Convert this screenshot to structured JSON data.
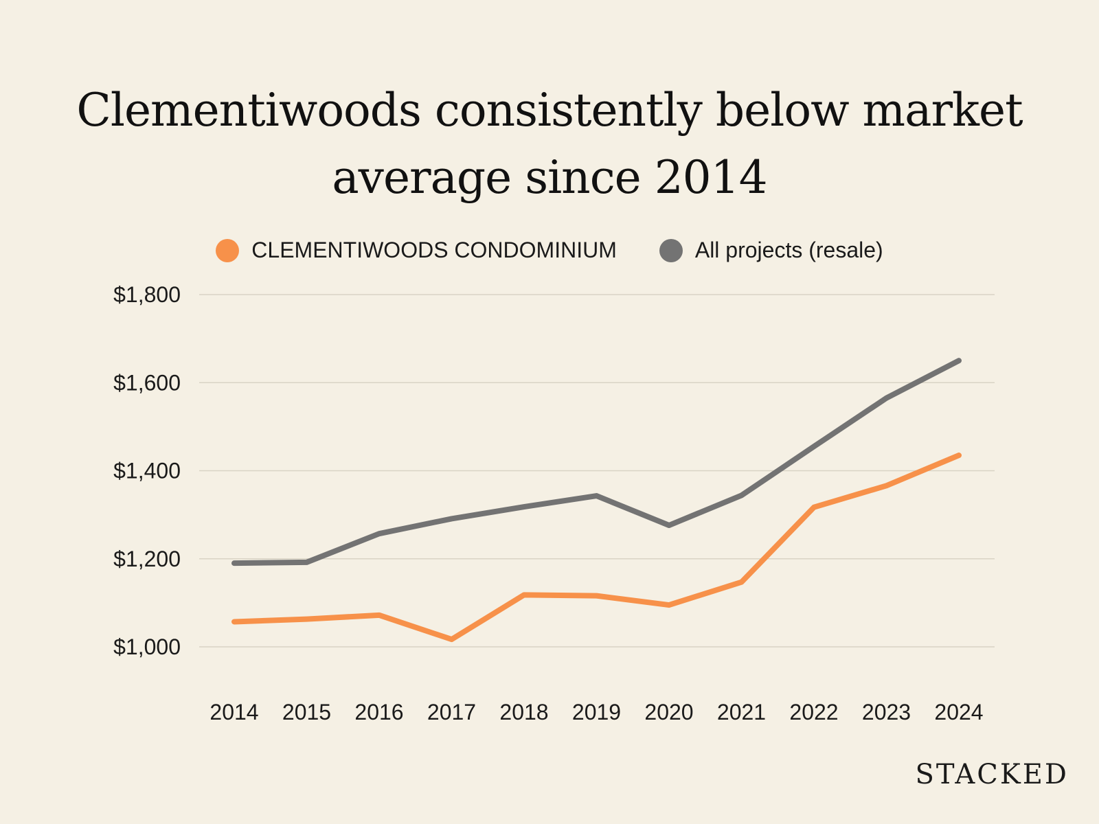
{
  "title": {
    "line1": "Clementiwoods consistently below market",
    "line2": "average since 2014"
  },
  "brand": "STACKED",
  "colors": {
    "background": "#f5f0e4",
    "grid": "#d9d3c5",
    "clementiwoods": "#f7914a",
    "all_projects": "#737373"
  },
  "chart_data": {
    "type": "line",
    "title": "Clementiwoods consistently below market average since 2014",
    "xlabel": "",
    "ylabel": "",
    "ylim": [
      1000,
      1800
    ],
    "yticks": [
      1000,
      1200,
      1400,
      1600,
      1800
    ],
    "ytick_labels": [
      "$1,000",
      "$1,200",
      "$1,400",
      "$1,600",
      "$1,800"
    ],
    "grid": true,
    "legend_position": "top-center",
    "categories": [
      "2014",
      "2015",
      "2016",
      "2017",
      "2018",
      "2019",
      "2020",
      "2021",
      "2022",
      "2023",
      "2024"
    ],
    "series": [
      {
        "name": "CLEMENTIWOODS CONDOMINIUM",
        "color": "#f7914a",
        "values": [
          1057,
          1063,
          1072,
          1017,
          1118,
          1116,
          1095,
          1147,
          1317,
          1366,
          1435
        ]
      },
      {
        "name": "All projects (resale)",
        "color": "#737373",
        "values": [
          1190,
          1192,
          1257,
          1291,
          1318,
          1343,
          1276,
          1344,
          1455,
          1565,
          1650
        ]
      }
    ]
  }
}
